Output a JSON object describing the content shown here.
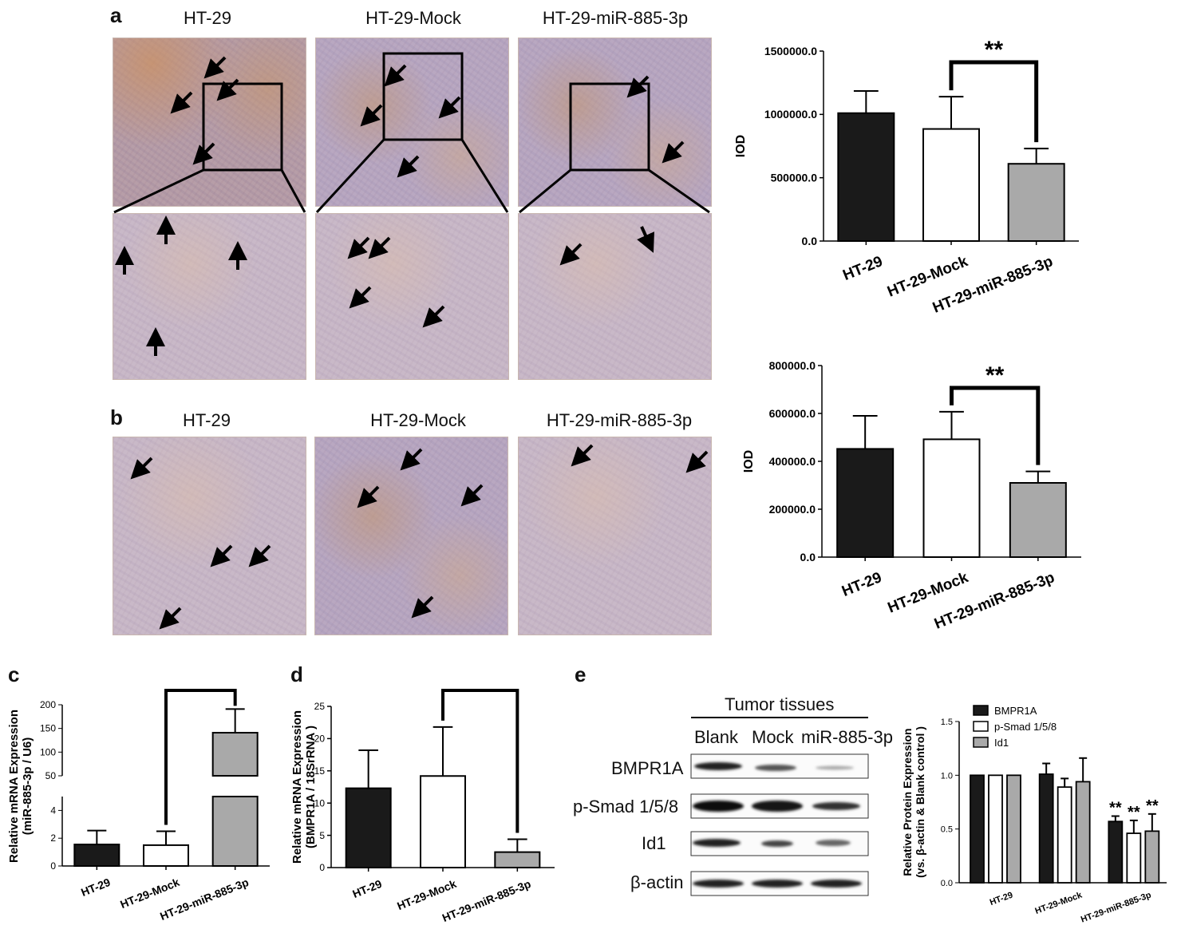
{
  "panels": {
    "a": {
      "label": "a",
      "titles": [
        "HT-29",
        "HT-29-Mock",
        "HT-29-miR-885-3p"
      ]
    },
    "b": {
      "label": "b",
      "titles": [
        "HT-29",
        "HT-29-Mock",
        "HT-29-miR-885-3p"
      ]
    },
    "c": {
      "label": "c"
    },
    "d": {
      "label": "d"
    },
    "e": {
      "label": "e"
    }
  },
  "blot": {
    "header": "Tumor tissues",
    "lanes": [
      "Blank",
      "Mock",
      "miR-885-3p"
    ],
    "rows": [
      "BMPR1A",
      "p-Smad 1/5/8",
      "Id1",
      "β-actin"
    ]
  },
  "colors": {
    "black": "#1a1a1a",
    "white": "#ffffff",
    "gray": "#a9a9a9"
  },
  "chart_data": [
    {
      "id": "chart-a",
      "type": "bar",
      "categories": [
        "HT-29",
        "HT-29-Mock",
        "HT-29-miR-885-3p"
      ],
      "values": [
        1010000,
        885000,
        610000
      ],
      "errors": [
        175000,
        255000,
        120000
      ],
      "ylabel": "IOD",
      "ylim": [
        0,
        1500000
      ],
      "yticks": [
        "0.0",
        "500000.0",
        "1000000.0",
        "1500000.0"
      ],
      "significance": "**"
    },
    {
      "id": "chart-b",
      "type": "bar",
      "categories": [
        "HT-29",
        "HT-29-Mock",
        "HT-29-miR-885-3p"
      ],
      "values": [
        452000,
        492000,
        310000
      ],
      "errors": [
        138000,
        115000,
        48000
      ],
      "ylabel": "IOD",
      "ylim": [
        0,
        800000
      ],
      "yticks": [
        "0.0",
        "200000.0",
        "400000.0",
        "600000.0",
        "800000.0"
      ],
      "significance": "**"
    },
    {
      "id": "chart-c",
      "type": "bar",
      "categories": [
        "HT-29",
        "HT-29-Mock",
        "HT-29-miR-885-3p"
      ],
      "values": [
        1.55,
        1.5,
        141
      ],
      "errors": [
        1.0,
        1.0,
        50
      ],
      "ylabel": "Relative mRNA Expression",
      "ylabel2": "(miR-885-3p / U6)",
      "yticks_lower": [
        "0",
        "2",
        "4"
      ],
      "yticks_upper": [
        "50",
        "100",
        "150",
        "200"
      ],
      "axis_break": true,
      "significance": "**"
    },
    {
      "id": "chart-d",
      "type": "bar",
      "categories": [
        "HT-29",
        "HT-29-Mock",
        "HT-29-miR-885-3p"
      ],
      "values": [
        12.3,
        14.2,
        2.4
      ],
      "errors": [
        5.9,
        7.6,
        2.0
      ],
      "ylabel": "Relative mRNA Expression",
      "ylabel2": "(BMPR1A / 18SrRNA )",
      "ylim": [
        0,
        25
      ],
      "yticks": [
        "0",
        "5",
        "10",
        "15",
        "20",
        "25"
      ],
      "significance": "**"
    },
    {
      "id": "chart-e",
      "type": "bar",
      "categories": [
        "HT-29",
        "HT-29-Mock",
        "HT-29-miR-885-3p"
      ],
      "series": [
        {
          "name": "BMPR1A",
          "values": [
            1.0,
            1.01,
            0.57
          ],
          "errors": [
            0,
            0.1,
            0.05
          ]
        },
        {
          "name": "p-Smad 1/5/8",
          "values": [
            1.0,
            0.89,
            0.46
          ],
          "errors": [
            0,
            0.08,
            0.12
          ]
        },
        {
          "name": "Id1",
          "values": [
            1.0,
            0.94,
            0.48
          ],
          "errors": [
            0,
            0.22,
            0.16
          ]
        }
      ],
      "ylabel": "Relative Protein Expression",
      "ylabel2": "(vs. β-actin & Blank control )",
      "ylim": [
        0,
        1.5
      ],
      "yticks": [
        "0.0",
        "0.5",
        "1.0",
        "1.5"
      ],
      "significance": "**",
      "legend": "top-left"
    }
  ]
}
